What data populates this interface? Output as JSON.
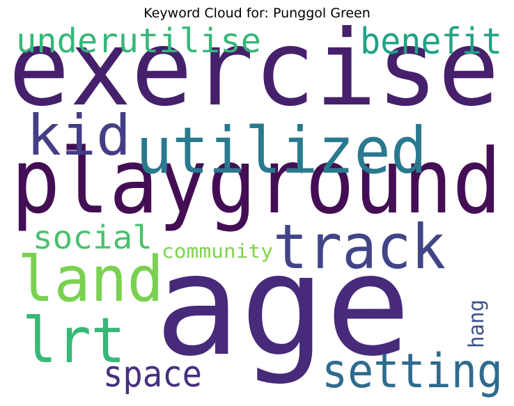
{
  "title": "Keyword Cloud for: Punggol Green",
  "words": [
    {
      "id": "exercise",
      "text": "exercise",
      "color": "#46206b"
    },
    {
      "id": "playground",
      "text": "playground",
      "color": "#440e54"
    },
    {
      "id": "age",
      "text": "age",
      "color": "#472a7a"
    },
    {
      "id": "utilized",
      "text": "utilized",
      "color": "#2a798e"
    },
    {
      "id": "track",
      "text": "track",
      "color": "#414487"
    },
    {
      "id": "setting",
      "text": "setting",
      "color": "#2f6b8e"
    },
    {
      "id": "land",
      "text": "land",
      "color": "#7ad151"
    },
    {
      "id": "lrt",
      "text": "lrt",
      "color": "#37b878"
    },
    {
      "id": "kid",
      "text": "kid",
      "color": "#433e85"
    },
    {
      "id": "benefit",
      "text": "benefit",
      "color": "#20a386"
    },
    {
      "id": "underutilise",
      "text": "underutilise",
      "color": "#35b779"
    },
    {
      "id": "social",
      "text": "social",
      "color": "#4ac16d"
    },
    {
      "id": "space",
      "text": "space",
      "color": "#46307e"
    },
    {
      "id": "community",
      "text": "community",
      "color": "#7fd34e"
    },
    {
      "id": "hang",
      "text": "hang",
      "color": "#3b528b"
    }
  ]
}
